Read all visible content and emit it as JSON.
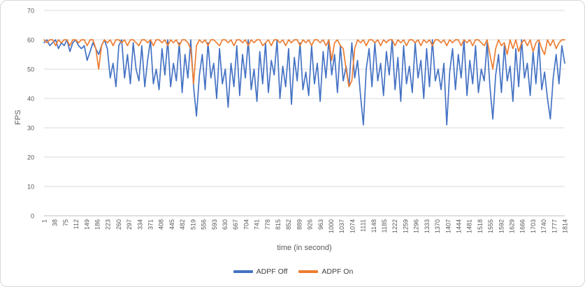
{
  "colors": {
    "background": "#FFFFFF",
    "border": "#D6D6D6",
    "grid": "#D9D9D9",
    "axis": "#BFBFBF",
    "tick_text": "#595959",
    "series_blue": "#4472C4",
    "series_orange": "#ED7D31"
  },
  "chart_data": {
    "type": "line",
    "title": "",
    "xlabel": "time (in second)",
    "ylabel": "FPS",
    "ylim": [
      0,
      70
    ],
    "y_ticks": [
      0,
      10,
      20,
      30,
      40,
      50,
      60,
      70
    ],
    "x_range": [
      1,
      1814
    ],
    "x_tick_labels": [
      "1",
      "38",
      "75",
      "112",
      "149",
      "186",
      "223",
      "260",
      "297",
      "334",
      "371",
      "408",
      "445",
      "482",
      "519",
      "556",
      "593",
      "630",
      "667",
      "704",
      "741",
      "778",
      "815",
      "852",
      "889",
      "926",
      "963",
      "1000",
      "1037",
      "1074",
      "1111",
      "1148",
      "1185",
      "1222",
      "1259",
      "1296",
      "1333",
      "1370",
      "1407",
      "1444",
      "1481",
      "1518",
      "1555",
      "1592",
      "1629",
      "1666",
      "1703",
      "1740",
      "1777",
      "1814"
    ],
    "grid": "horizontal",
    "legend_position": "bottom",
    "series": [
      {
        "name": "ADPF Off",
        "color": "#4472C4",
        "values": [
          59,
          60,
          58,
          59,
          60,
          57,
          59,
          58,
          60,
          56,
          59,
          60,
          58,
          57,
          58,
          53,
          56,
          59,
          57,
          55,
          58,
          60,
          57,
          47,
          52,
          44,
          58,
          60,
          47,
          55,
          45,
          59,
          50,
          46,
          58,
          44,
          53,
          60,
          45,
          50,
          43,
          57,
          48,
          60,
          44,
          52,
          46,
          59,
          42,
          55,
          47,
          60,
          44,
          34,
          48,
          55,
          43,
          59,
          47,
          52,
          40,
          57,
          45,
          50,
          37,
          52,
          44,
          58,
          41,
          55,
          47,
          60,
          43,
          50,
          39,
          56,
          45,
          59,
          42,
          53,
          48,
          60,
          40,
          51,
          44,
          57,
          38,
          54,
          46,
          59,
          43,
          49,
          41,
          58,
          45,
          52,
          39,
          56,
          47,
          60,
          48,
          55,
          42,
          58,
          46,
          51,
          44,
          59,
          47,
          53,
          41,
          31,
          50,
          57,
          44,
          59,
          46,
          52,
          41,
          56,
          48,
          60,
          43,
          54,
          39,
          58,
          45,
          51,
          42,
          59,
          47,
          53,
          40,
          57,
          44,
          60,
          46,
          50,
          43,
          52,
          31,
          49,
          57,
          43,
          55,
          47,
          60,
          41,
          53,
          45,
          58,
          42,
          50,
          46,
          59,
          44,
          33,
          48,
          55,
          42,
          58,
          46,
          51,
          39,
          57,
          44,
          60,
          47,
          52,
          41,
          56,
          45,
          59,
          43,
          49,
          40,
          33,
          47,
          55,
          45,
          58,
          52
        ]
      },
      {
        "name": "ADPF On",
        "color": "#ED7D31",
        "values": [
          60,
          59,
          60,
          60,
          58,
          60,
          59,
          60,
          60,
          58,
          60,
          60,
          59,
          60,
          60,
          58,
          60,
          60,
          57,
          50,
          58,
          60,
          59,
          60,
          58,
          60,
          60,
          59,
          60,
          58,
          60,
          60,
          59,
          58,
          60,
          60,
          59,
          60,
          58,
          60,
          60,
          59,
          60,
          58,
          60,
          59,
          60,
          58,
          60,
          60,
          59,
          57,
          45,
          58,
          60,
          59,
          60,
          58,
          60,
          60,
          59,
          58,
          60,
          60,
          59,
          60,
          58,
          60,
          60,
          59,
          60,
          58,
          60,
          59,
          60,
          60,
          58,
          59,
          60,
          58,
          60,
          60,
          59,
          60,
          58,
          60,
          59,
          60,
          60,
          58,
          60,
          59,
          60,
          58,
          60,
          60,
          59,
          60,
          58,
          60,
          53,
          59,
          60,
          58,
          57,
          50,
          44,
          46,
          57,
          60,
          59,
          60,
          58,
          60,
          60,
          59,
          60,
          58,
          60,
          59,
          60,
          60,
          58,
          60,
          59,
          60,
          58,
          60,
          60,
          59,
          60,
          58,
          60,
          59,
          60,
          58,
          60,
          60,
          59,
          60,
          58,
          60,
          59,
          60,
          60,
          58,
          60,
          59,
          60,
          58,
          60,
          60,
          59,
          58,
          60,
          55,
          50,
          57,
          60,
          58,
          59,
          55,
          60,
          57,
          60,
          56,
          59,
          60,
          58,
          60,
          56,
          59,
          60,
          57,
          55,
          60,
          58,
          60,
          57,
          59,
          60,
          60
        ]
      }
    ]
  }
}
